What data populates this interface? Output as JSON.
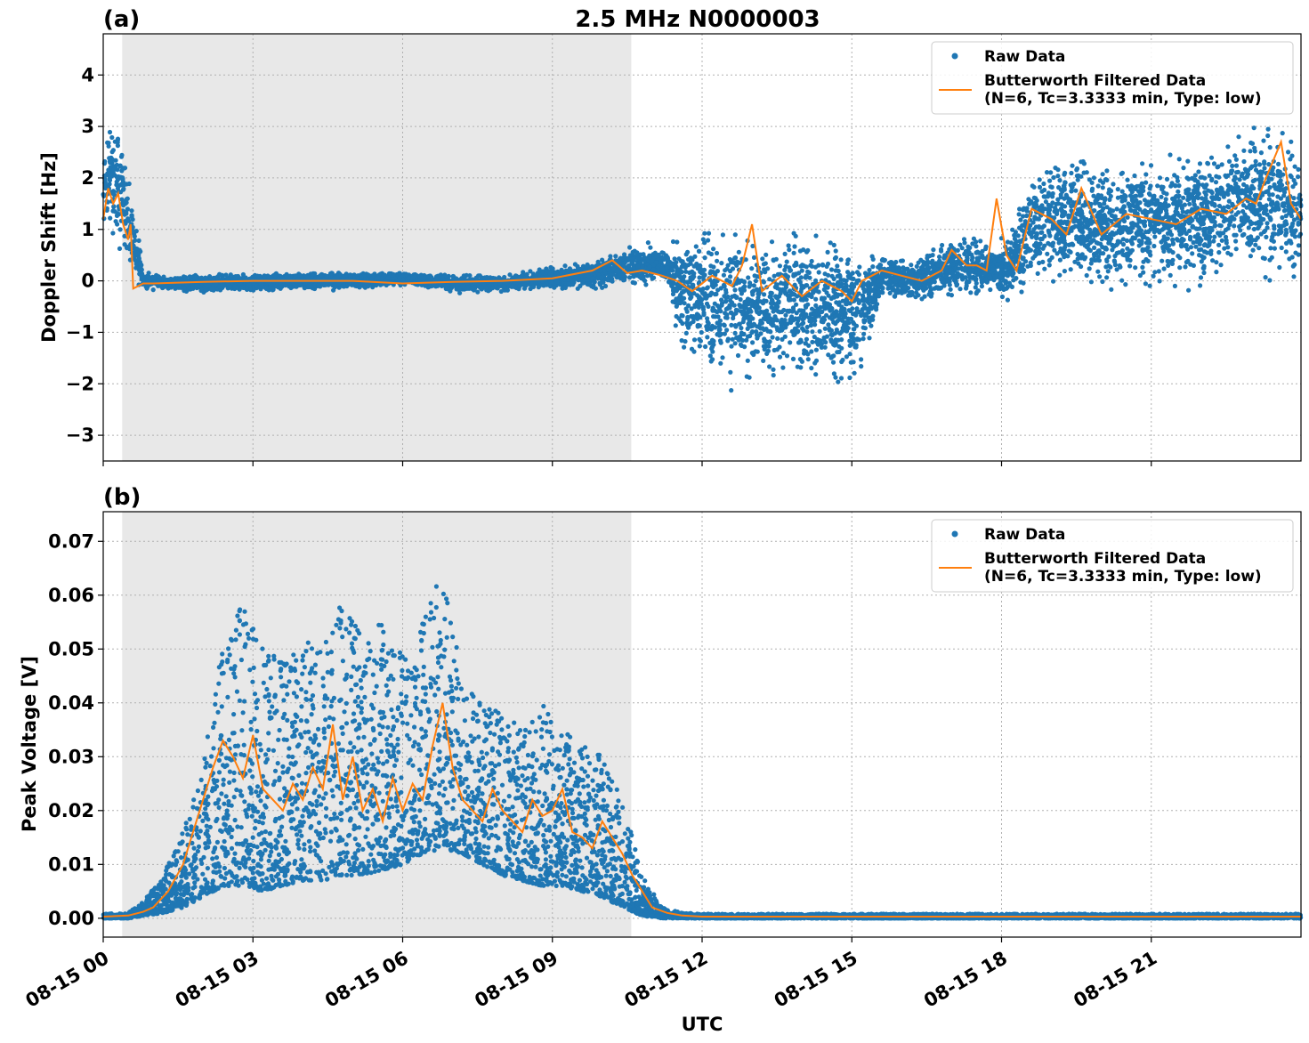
{
  "figure": {
    "suptitle": "2.5 MHz N0000003",
    "xlabel": "UTC"
  },
  "colors": {
    "raw": "#1f77b4",
    "filtered": "#ff7f0e",
    "shade": "#e8e8e8",
    "grid": "#b0b0b0"
  },
  "chart_data": [
    {
      "type": "scatter",
      "panel_label": "(a)",
      "title": "2.5 MHz N0000003",
      "ylabel": "Doppler Shift [Hz]",
      "xlabel": "",
      "x_unit": "hours UTC on 08-15",
      "xlim": [
        0,
        24
      ],
      "ylim": [
        -3.5,
        4.8
      ],
      "yticks": [
        -3,
        -2,
        -1,
        0,
        1,
        2,
        3,
        4
      ],
      "ytick_labels": [
        "−3",
        "−2",
        "−1",
        "0",
        "1",
        "2",
        "3",
        "4"
      ],
      "grid": true,
      "legend_position": "top-right",
      "shaded_x_range": [
        0.38,
        10.58
      ],
      "legend": [
        "Raw Data",
        "Butterworth Filtered Data",
        "(N=6, Tc=3.3333 min, Type: low)"
      ],
      "series": [
        {
          "name": "Raw Data",
          "kind": "scatter",
          "envelope": {
            "x": [
              0,
              0.3,
              0.5,
              0.8,
              1.2,
              2,
              3,
              4,
              5,
              6,
              7,
              8,
              9,
              10,
              10.6,
              11.3,
              11.6,
              12,
              12.6,
              13.2,
              14,
              14.6,
              15.1,
              15.6,
              16.2,
              16.8,
              17.4,
              17.8,
              18.2,
              18.6,
              19.2,
              20,
              21,
              22,
              23,
              23.5,
              24
            ],
            "center": [
              2.0,
              2.0,
              1.3,
              0.0,
              -0.05,
              -0.05,
              -0.02,
              0.0,
              0.0,
              0.05,
              -0.05,
              -0.05,
              0.05,
              0.15,
              0.3,
              0.3,
              -0.2,
              -0.4,
              -0.5,
              -0.5,
              -0.5,
              -0.6,
              -0.6,
              0.1,
              0.0,
              0.2,
              0.3,
              0.2,
              0.3,
              1.1,
              1.2,
              1.0,
              1.2,
              1.2,
              1.6,
              1.5,
              1.3
            ],
            "spread": [
              1.3,
              1.4,
              1.1,
              0.25,
              0.15,
              0.2,
              0.2,
              0.2,
              0.2,
              0.15,
              0.2,
              0.2,
              0.25,
              0.35,
              0.5,
              0.4,
              1.4,
              1.6,
              1.7,
              1.6,
              1.6,
              1.6,
              1.6,
              0.5,
              0.5,
              0.6,
              0.7,
              0.6,
              0.8,
              1.4,
              1.4,
              1.5,
              1.5,
              1.5,
              1.6,
              1.7,
              1.6
            ]
          }
        },
        {
          "name": "Butterworth Filtered Data",
          "kind": "line",
          "x": [
            0,
            0.1,
            0.2,
            0.3,
            0.4,
            0.5,
            0.55,
            0.6,
            0.8,
            1,
            2,
            3,
            4,
            5,
            6,
            7,
            8,
            9,
            9.8,
            10.2,
            10.5,
            10.8,
            11.2,
            11.5,
            11.8,
            12.2,
            12.6,
            12.8,
            13.0,
            13.2,
            13.6,
            14.0,
            14.4,
            14.8,
            15.0,
            15.2,
            15.6,
            16.0,
            16.4,
            16.8,
            17.0,
            17.3,
            17.5,
            17.7,
            17.9,
            18.1,
            18.3,
            18.6,
            19.0,
            19.3,
            19.6,
            20.0,
            20.5,
            21.0,
            21.5,
            22.0,
            22.5,
            22.9,
            23.1,
            23.3,
            23.6,
            23.8,
            24
          ],
          "y": [
            1.2,
            1.8,
            1.5,
            1.7,
            1.1,
            0.8,
            1.1,
            -0.15,
            -0.05,
            -0.05,
            -0.02,
            0.0,
            0.0,
            0.0,
            -0.05,
            -0.02,
            0.0,
            0.05,
            0.2,
            0.4,
            0.15,
            0.2,
            0.1,
            0.0,
            -0.2,
            0.1,
            -0.1,
            0.3,
            1.1,
            -0.2,
            0.1,
            -0.3,
            0.0,
            -0.2,
            -0.4,
            0.0,
            0.2,
            0.1,
            0.0,
            0.2,
            0.6,
            0.3,
            0.3,
            0.2,
            1.6,
            0.5,
            0.2,
            1.4,
            1.2,
            0.9,
            1.8,
            0.9,
            1.3,
            1.2,
            1.1,
            1.4,
            1.3,
            1.6,
            1.5,
            2.0,
            2.7,
            1.5,
            1.2
          ]
        }
      ]
    },
    {
      "type": "scatter",
      "panel_label": "(b)",
      "title": "",
      "ylabel": "Peak Voltage [V]",
      "xlabel": "UTC",
      "x_unit": "hours UTC on 08-15",
      "xlim": [
        0,
        24
      ],
      "ylim": [
        -0.0035,
        0.0755
      ],
      "yticks": [
        0.0,
        0.01,
        0.02,
        0.03,
        0.04,
        0.05,
        0.06,
        0.07
      ],
      "ytick_labels": [
        "0.00",
        "0.01",
        "0.02",
        "0.03",
        "0.04",
        "0.05",
        "0.06",
        "0.07"
      ],
      "xticks": [
        0,
        3,
        6,
        9,
        12,
        15,
        18,
        21
      ],
      "xtick_labels": [
        "08-15 00",
        "08-15 03",
        "08-15 06",
        "08-15 09",
        "08-15 12",
        "08-15 15",
        "08-15 18",
        "08-15 21"
      ],
      "grid": true,
      "legend_position": "top-right",
      "shaded_x_range": [
        0.38,
        10.58
      ],
      "legend": [
        "Raw Data",
        "Butterworth Filtered Data",
        "(N=6, Tc=3.3333 min, Type: low)"
      ],
      "series": [
        {
          "name": "Raw Data",
          "kind": "scatter",
          "envelope": {
            "x": [
              0,
              0.5,
              0.8,
              1.2,
              1.6,
              2.0,
              2.4,
              2.8,
              3.2,
              3.6,
              4.0,
              4.4,
              4.8,
              5.2,
              5.6,
              6.0,
              6.4,
              6.8,
              7.2,
              7.6,
              8.0,
              8.4,
              8.8,
              9.2,
              9.6,
              10.0,
              10.4,
              10.8,
              11.2,
              11.6,
              12,
              24
            ],
            "lo": [
              0.0,
              0.0,
              0.0005,
              0.001,
              0.002,
              0.004,
              0.006,
              0.006,
              0.005,
              0.006,
              0.007,
              0.007,
              0.008,
              0.008,
              0.009,
              0.01,
              0.012,
              0.013,
              0.012,
              0.01,
              0.008,
              0.007,
              0.006,
              0.006,
              0.005,
              0.004,
              0.002,
              0.0005,
              0.0,
              0.0,
              0.0,
              0.0
            ],
            "hi": [
              0.0008,
              0.001,
              0.003,
              0.008,
              0.016,
              0.028,
              0.055,
              0.058,
              0.05,
              0.048,
              0.05,
              0.055,
              0.06,
              0.052,
              0.056,
              0.05,
              0.055,
              0.065,
              0.045,
              0.04,
              0.038,
              0.036,
              0.04,
              0.035,
              0.033,
              0.03,
              0.022,
              0.008,
              0.002,
              0.001,
              0.0008,
              0.0008
            ]
          }
        },
        {
          "name": "Butterworth Filtered Data",
          "kind": "line",
          "x": [
            0,
            0.5,
            0.8,
            1.0,
            1.3,
            1.6,
            1.8,
            2.0,
            2.2,
            2.4,
            2.6,
            2.8,
            3.0,
            3.2,
            3.4,
            3.6,
            3.8,
            4.0,
            4.2,
            4.4,
            4.6,
            4.8,
            5.0,
            5.2,
            5.4,
            5.6,
            5.8,
            6.0,
            6.2,
            6.4,
            6.6,
            6.8,
            7.0,
            7.2,
            7.4,
            7.6,
            7.8,
            8.0,
            8.2,
            8.4,
            8.6,
            8.8,
            9.0,
            9.2,
            9.4,
            9.6,
            9.8,
            10.0,
            10.2,
            10.4,
            10.6,
            10.8,
            11.0,
            11.3,
            11.6,
            12,
            24
          ],
          "y": [
            0.0003,
            0.0005,
            0.0012,
            0.002,
            0.005,
            0.01,
            0.016,
            0.022,
            0.028,
            0.033,
            0.03,
            0.026,
            0.034,
            0.024,
            0.022,
            0.02,
            0.025,
            0.022,
            0.028,
            0.024,
            0.036,
            0.022,
            0.03,
            0.02,
            0.024,
            0.018,
            0.026,
            0.02,
            0.025,
            0.022,
            0.032,
            0.04,
            0.028,
            0.022,
            0.02,
            0.018,
            0.024,
            0.02,
            0.018,
            0.016,
            0.022,
            0.019,
            0.02,
            0.024,
            0.016,
            0.015,
            0.013,
            0.018,
            0.015,
            0.012,
            0.008,
            0.005,
            0.002,
            0.001,
            0.0005,
            0.0003,
            0.0003
          ]
        }
      ]
    }
  ]
}
